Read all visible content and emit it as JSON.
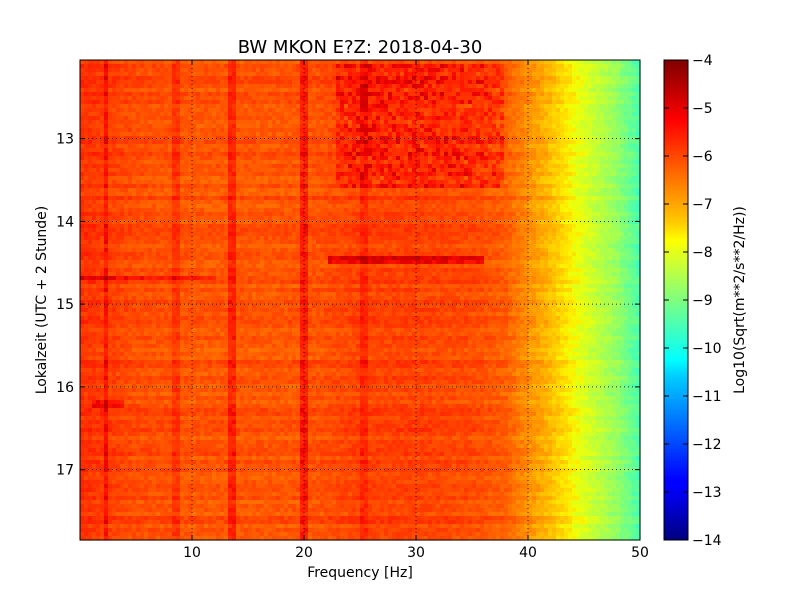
{
  "chart_data": {
    "type": "heatmap",
    "title": "BW MKON E?Z: 2018-04-30",
    "xlabel": "Frequency [Hz]",
    "ylabel": "Lokalzeit (UTC + 2 Stunde)",
    "xlim": [
      0,
      50
    ],
    "ylim": [
      12.05,
      17.85
    ],
    "y_inverted": true,
    "x_ticks": [
      10,
      20,
      30,
      40,
      50
    ],
    "y_ticks": [
      13,
      14,
      15,
      16,
      17
    ],
    "grid": true,
    "colormap": "jet",
    "colorbar": {
      "label": "Log10(Sqrt(m**2/s**2/Hz))",
      "range": [
        -14,
        -4
      ],
      "ticks": [
        -4,
        -5,
        -6,
        -7,
        -8,
        -9,
        -10,
        -11,
        -12,
        -13,
        -14
      ]
    },
    "frequency_profile": {
      "frequency_hz": [
        0,
        5,
        10,
        15,
        20,
        25,
        30,
        35,
        38,
        40,
        42,
        44,
        46,
        48,
        50
      ],
      "log_amplitude": [
        -5.4,
        -5.7,
        -5.8,
        -5.8,
        -5.8,
        -5.6,
        -5.6,
        -5.7,
        -5.9,
        -6.4,
        -6.9,
        -7.5,
        -8.1,
        -8.7,
        -9.6
      ]
    },
    "features": [
      {
        "type": "vertical_line",
        "frequency_hz": 2.3,
        "delta": 0.45
      },
      {
        "type": "vertical_line",
        "frequency_hz": 8.7,
        "delta": 0.35
      },
      {
        "type": "vertical_line",
        "frequency_hz": 13.6,
        "delta": 0.55
      },
      {
        "type": "vertical_line",
        "frequency_hz": 20.1,
        "delta": 0.6
      },
      {
        "type": "vertical_line",
        "frequency_hz": 25.3,
        "delta": 0.3
      },
      {
        "type": "horizontal_band",
        "time_h": 14.45,
        "freq_range": [
          22,
          36
        ],
        "delta": 0.8
      },
      {
        "type": "horizontal_band",
        "time_h": 14.68,
        "freq_range": [
          0,
          12
        ],
        "delta": 0.5
      },
      {
        "type": "horizontal_band",
        "time_h": 16.22,
        "freq_range": [
          1,
          4
        ],
        "delta": 0.6
      },
      {
        "type": "hot_region",
        "time_range": [
          12.1,
          13.6
        ],
        "freq_range": [
          23,
          38
        ],
        "delta": 0.7
      }
    ]
  }
}
